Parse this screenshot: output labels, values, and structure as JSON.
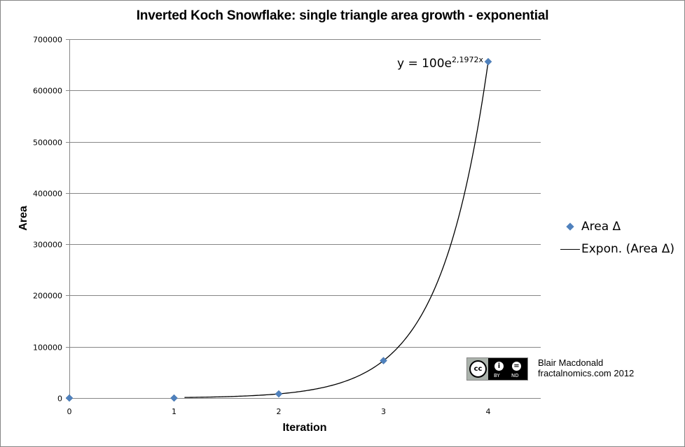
{
  "chart_data": {
    "type": "scatter",
    "title": "Inverted Koch Snowflake: single triangle area growth - exponential",
    "xlabel": "Iteration",
    "ylabel": "Area",
    "xlim": [
      0,
      4
    ],
    "ylim": [
      0,
      700000
    ],
    "x_ticks": [
      "0",
      "1",
      "2",
      "3",
      "4"
    ],
    "y_ticks": [
      "0",
      "100000",
      "200000",
      "300000",
      "400000",
      "500000",
      "600000",
      "700000"
    ],
    "grid": "horizontal major gridlines",
    "legend_position": "right",
    "series": [
      {
        "name": "Area Δ",
        "type": "scatter",
        "marker": "diamond",
        "color": "#4F81BD",
        "x": [
          0,
          1,
          2,
          3,
          4
        ],
        "y": [
          0,
          0,
          8100,
          72900,
          656100
        ]
      },
      {
        "name": "Expon. (Area Δ)",
        "type": "line",
        "color": "#000000",
        "equation": "y = 100e^(2,1972x)",
        "a": 100,
        "b": 2.1972,
        "x_range": [
          1.1,
          4
        ]
      }
    ],
    "annotations": [
      "y = 100e2,1972x"
    ]
  },
  "labels": {
    "title": "Inverted Koch Snowflake: single triangle area growth - exponential",
    "xlabel": "Iteration",
    "ylabel": "Area",
    "equation_base": "y = 100e",
    "equation_exponent": "2,1972x"
  },
  "legend": {
    "items": [
      {
        "label": "Area Δ",
        "marker": "diamond",
        "color": "#4F81BD"
      },
      {
        "label": "Expon. (Area Δ)",
        "marker": "line",
        "color": "#000000"
      }
    ]
  },
  "credit": {
    "license_main": "cc",
    "license_by": "BY",
    "license_nd": "ND",
    "author": "Blair Macdonald",
    "site": "fractalnomics.com 2012"
  },
  "colors": {
    "series": "#4F81BD",
    "trendline": "#000000",
    "gridline": "#868686",
    "axis": "#868686"
  }
}
